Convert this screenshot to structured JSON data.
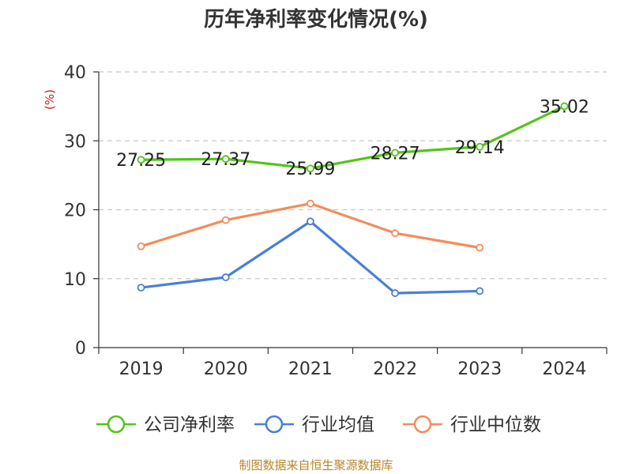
{
  "chart_data": {
    "type": "line",
    "title": "历年净利率变化情况(%)",
    "ylabel": "(%)",
    "xlabel": "",
    "categories": [
      "2019",
      "2020",
      "2021",
      "2022",
      "2023",
      "2024"
    ],
    "ylim": [
      0,
      40
    ],
    "yticks": [
      0,
      10,
      20,
      30,
      40
    ],
    "grid": true,
    "legend_position": "bottom",
    "series": [
      {
        "name": "公司净利率",
        "color": "#52c41a",
        "labeled": true,
        "values": [
          27.25,
          27.37,
          25.99,
          28.27,
          29.14,
          35.02
        ],
        "labels": [
          "27.25",
          "27.37",
          "25.99",
          "28.27",
          "29.14",
          "35.02"
        ]
      },
      {
        "name": "行业均值",
        "color": "#4a7fd8",
        "labeled": false,
        "values": [
          8.7,
          10.2,
          18.3,
          7.9,
          8.2,
          null
        ]
      },
      {
        "name": "行业中位数",
        "color": "#f48c5a",
        "labeled": false,
        "values": [
          14.7,
          18.5,
          20.9,
          16.6,
          14.5,
          null
        ]
      }
    ]
  },
  "source": "制图数据来自恒生聚源数据库"
}
